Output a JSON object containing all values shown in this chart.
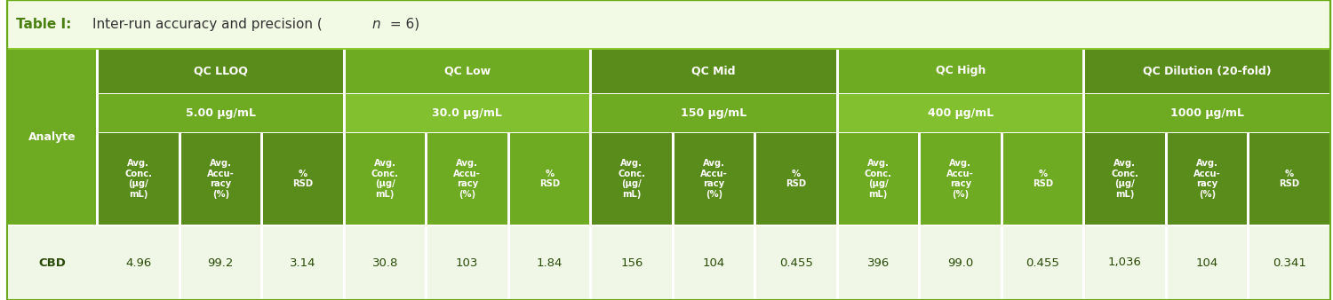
{
  "title_bold": "Table I:",
  "title_rest": " Inter-run accuracy and precision (",
  "title_italic": "n",
  "title_end": " = 6)",
  "green_dark": "#5a8c1c",
  "green_mid": "#6eaa22",
  "green_light": "#82c030",
  "green_lighter": "#90cc38",
  "data_row_bg": "#f0f7e6",
  "border_color": "#6aaa1a",
  "title_bg": "#f2f9e4",
  "title_border": "#8cc830",
  "text_white": "#ffffff",
  "text_dark": "#2a4a08",
  "qc_groups": [
    {
      "name": "QC LLOQ",
      "conc": "5.00 μg/mL"
    },
    {
      "name": "QC Low",
      "conc": "30.0 μg/mL"
    },
    {
      "name": "QC Mid",
      "conc": "150 μg/mL"
    },
    {
      "name": "QC High",
      "conc": "400 μg/mL"
    },
    {
      "name": "QC Dilution (20-fold)",
      "conc": "1000 μg/mL"
    }
  ],
  "col_headers": [
    "Avg.\nConc.\n(μg/\nmL)",
    "Avg.\nAccu-\nracy\n(%)",
    "%\nRSD",
    "Avg.\nConc.\n(μg/\nmL)",
    "Avg.\nAccu-\nracy\n(%)",
    "%\nRSD",
    "Avg.\nConc.\n(μg/\nmL)",
    "Avg.\nAccu-\nracy\n(%)",
    "%\nRSD",
    "Avg.\nConc.\n(μg/\nmL)",
    "Avg.\nAccu-\nracy\n(%)",
    "%\nRSD",
    "Avg.\nConc.\n(μg/\nmL)",
    "Avg.\nAccu-\nracy\n(%)",
    "%\nRSD"
  ],
  "data_row": {
    "analyte": "CBD",
    "values": [
      "4.96",
      "99.2",
      "3.14",
      "30.8",
      "103",
      "1.84",
      "156",
      "104",
      "0.455",
      "396",
      "99.0",
      "0.455",
      "1,036",
      "104",
      "0.341"
    ]
  }
}
